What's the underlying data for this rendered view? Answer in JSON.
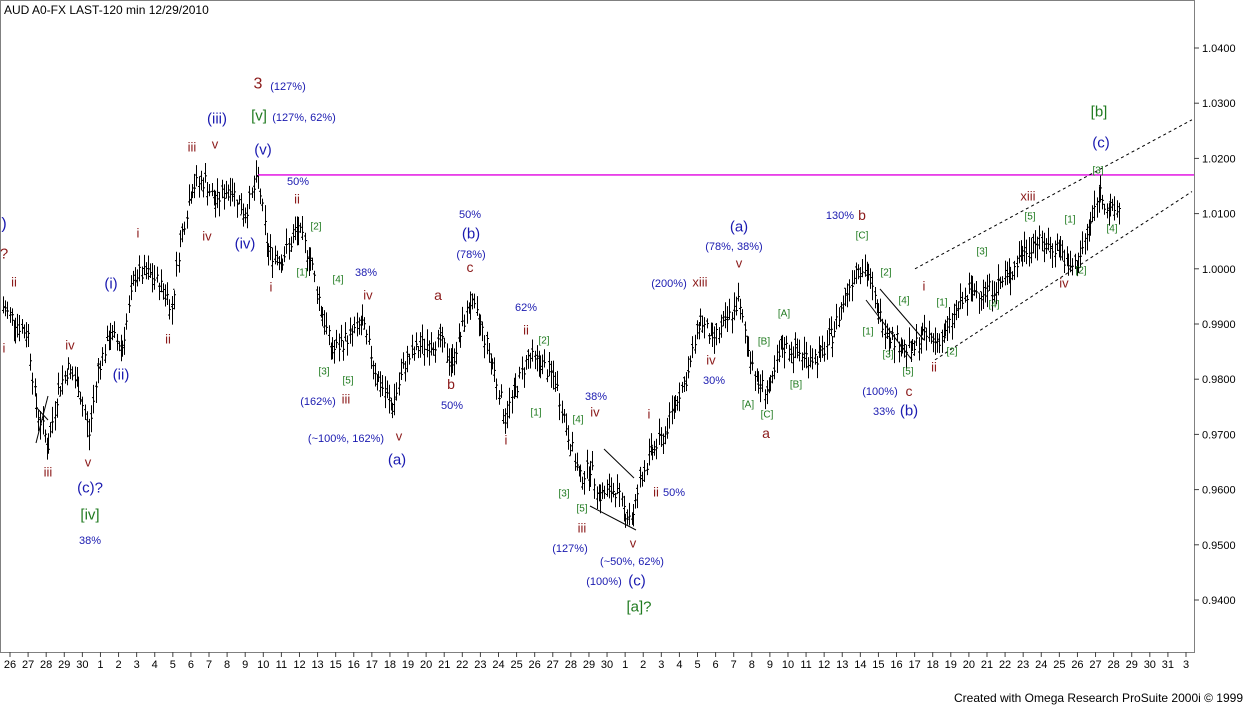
{
  "header": {
    "title": "AUD A0-FX LAST-120 min   12/29/2010"
  },
  "footer": {
    "credit": "Created with Omega Research ProSuite 2000i © 1999"
  },
  "colors": {
    "blue": "#1a1ab0",
    "red": "#8b1a1a",
    "green": "#1f7a1f",
    "pink": "#e000e0",
    "axis": "#404040",
    "bar": "#000000"
  },
  "chart_data": {
    "type": "ohlc",
    "ylim": [
      0.93,
      1.049
    ],
    "y_ticks": [
      0.94,
      0.95,
      0.96,
      0.97,
      0.98,
      0.99,
      1.0,
      1.01,
      1.02,
      1.03,
      1.04
    ],
    "y_tick_labels": [
      "0.9400",
      "0.9500",
      "0.9600",
      "0.9700",
      "0.9800",
      "0.9900",
      "1.0000",
      "1.0100",
      "1.0200",
      "1.0300",
      "1.0400"
    ],
    "x_labels": [
      "26",
      "27",
      "28",
      "29",
      "30",
      "1",
      "2",
      "3",
      "4",
      "5",
      "6",
      "7",
      "8",
      "9",
      "10",
      "11",
      "12",
      "13",
      "15",
      "16",
      "17",
      "18",
      "19",
      "20",
      "21",
      "22",
      "23",
      "24",
      "25",
      "26",
      "27",
      "28",
      "29",
      "30",
      "1",
      "2",
      "3",
      "4",
      "5",
      "6",
      "7",
      "8",
      "9",
      "10",
      "11",
      "12",
      "13",
      "14",
      "15",
      "16",
      "17",
      "18",
      "19",
      "20",
      "21",
      "22",
      "23",
      "24",
      "25",
      "26",
      "27",
      "28",
      "29",
      "30",
      "31",
      "3"
    ],
    "horizontal_line": 1.017,
    "trend_lines": [
      {
        "from": [
          915,
          1.0
        ],
        "to": [
          1192,
          1.027
        ]
      },
      {
        "from": [
          935,
          0.9835
        ],
        "to": [
          1192,
          1.014
        ]
      }
    ],
    "price_path": [
      [
        3,
        0.993
      ],
      [
        15,
        0.9905
      ],
      [
        28,
        0.988
      ],
      [
        36,
        0.975
      ],
      [
        48,
        0.968
      ],
      [
        58,
        0.978
      ],
      [
        68,
        0.982
      ],
      [
        78,
        0.979
      ],
      [
        89,
        0.97
      ],
      [
        98,
        0.982
      ],
      [
        110,
        0.988
      ],
      [
        122,
        0.986
      ],
      [
        135,
        0.999
      ],
      [
        150,
        0.999
      ],
      [
        165,
        0.996
      ],
      [
        172,
        0.993
      ],
      [
        180,
        1.005
      ],
      [
        192,
        1.015
      ],
      [
        205,
        1.016
      ],
      [
        215,
        1.012
      ],
      [
        230,
        1.015
      ],
      [
        245,
        1.01
      ],
      [
        258,
        1.0165
      ],
      [
        268,
        1.003
      ],
      [
        282,
        1.002
      ],
      [
        298,
        1.007
      ],
      [
        310,
        1.002
      ],
      [
        322,
        0.992
      ],
      [
        332,
        0.985
      ],
      [
        350,
        0.988
      ],
      [
        362,
        0.99
      ],
      [
        378,
        0.98
      ],
      [
        392,
        0.975
      ],
      [
        405,
        0.983
      ],
      [
        420,
        0.986
      ],
      [
        440,
        0.987
      ],
      [
        452,
        0.983
      ],
      [
        460,
        0.988
      ],
      [
        470,
        0.994
      ],
      [
        480,
        0.99
      ],
      [
        492,
        0.983
      ],
      [
        505,
        0.973
      ],
      [
        515,
        0.978
      ],
      [
        528,
        0.984
      ],
      [
        540,
        0.983
      ],
      [
        555,
        0.98
      ],
      [
        568,
        0.97
      ],
      [
        580,
        0.962
      ],
      [
        590,
        0.964
      ],
      [
        600,
        0.959
      ],
      [
        615,
        0.96
      ],
      [
        625,
        0.956
      ],
      [
        633,
        0.955
      ],
      [
        640,
        0.962
      ],
      [
        652,
        0.967
      ],
      [
        665,
        0.97
      ],
      [
        675,
        0.976
      ],
      [
        688,
        0.981
      ],
      [
        700,
        0.991
      ],
      [
        712,
        0.987
      ],
      [
        725,
        0.99
      ],
      [
        738,
        0.994
      ],
      [
        748,
        0.986
      ],
      [
        758,
        0.979
      ],
      [
        770,
        0.978
      ],
      [
        782,
        0.986
      ],
      [
        795,
        0.985
      ],
      [
        808,
        0.984
      ],
      [
        820,
        0.984
      ],
      [
        832,
        0.988
      ],
      [
        845,
        0.995
      ],
      [
        858,
        1.001
      ],
      [
        868,
        0.999
      ],
      [
        878,
        0.992
      ],
      [
        890,
        0.988
      ],
      [
        902,
        0.986
      ],
      [
        912,
        0.985
      ],
      [
        922,
        0.988
      ],
      [
        935,
        0.987
      ],
      [
        945,
        0.988
      ],
      [
        958,
        0.993
      ],
      [
        972,
        0.996
      ],
      [
        985,
        0.996
      ],
      [
        998,
        0.997
      ],
      [
        1010,
        0.999
      ],
      [
        1022,
        1.003
      ],
      [
        1035,
        1.005
      ],
      [
        1048,
        1.004
      ],
      [
        1060,
        1.004
      ],
      [
        1068,
        1.0
      ],
      [
        1078,
        1.001
      ],
      [
        1090,
        1.008
      ],
      [
        1100,
        1.014
      ],
      [
        1110,
        1.01
      ],
      [
        1120,
        1.011
      ]
    ],
    "annotations": [
      {
        "text": ")",
        "x": 4,
        "y": 223,
        "c": "blue",
        "s": 16
      },
      {
        "text": "?",
        "x": 4,
        "y": 253,
        "c": "red",
        "s": 15
      },
      {
        "text": "ii",
        "x": 14,
        "y": 282,
        "c": "red",
        "s": 13
      },
      {
        "text": "i",
        "x": 4,
        "y": 348,
        "c": "red",
        "s": 13
      },
      {
        "text": "iv",
        "x": 70,
        "y": 345,
        "c": "red",
        "s": 13
      },
      {
        "text": "iii",
        "x": 48,
        "y": 472,
        "c": "red",
        "s": 13
      },
      {
        "text": "v",
        "x": 88,
        "y": 462,
        "c": "red",
        "s": 13
      },
      {
        "text": "(c)?",
        "x": 90,
        "y": 487,
        "c": "blue",
        "s": 15
      },
      {
        "text": "[iv]",
        "x": 90,
        "y": 514,
        "c": "green",
        "s": 15
      },
      {
        "text": "38%",
        "x": 90,
        "y": 540,
        "c": "blue",
        "s": 11
      },
      {
        "text": "(i)",
        "x": 111,
        "y": 283,
        "c": "blue",
        "s": 15
      },
      {
        "text": "(ii)",
        "x": 121,
        "y": 374,
        "c": "blue",
        "s": 15
      },
      {
        "text": "i",
        "x": 138,
        "y": 233,
        "c": "red",
        "s": 13
      },
      {
        "text": "ii",
        "x": 168,
        "y": 339,
        "c": "red",
        "s": 13
      },
      {
        "text": "iii",
        "x": 192,
        "y": 147,
        "c": "red",
        "s": 13
      },
      {
        "text": "iv",
        "x": 207,
        "y": 236,
        "c": "red",
        "s": 13
      },
      {
        "text": "v",
        "x": 215,
        "y": 144,
        "c": "red",
        "s": 13
      },
      {
        "text": "(iii)",
        "x": 217,
        "y": 118,
        "c": "blue",
        "s": 15
      },
      {
        "text": "(iv)",
        "x": 245,
        "y": 243,
        "c": "blue",
        "s": 15
      },
      {
        "text": "(v)",
        "x": 263,
        "y": 149,
        "c": "blue",
        "s": 15
      },
      {
        "text": "3",
        "x": 258,
        "y": 83,
        "c": "red",
        "s": 16
      },
      {
        "text": "(127%)",
        "x": 288,
        "y": 86,
        "c": "blue",
        "s": 11
      },
      {
        "text": "[v]",
        "x": 259,
        "y": 115,
        "c": "green",
        "s": 15
      },
      {
        "text": "(127%, 62%)",
        "x": 304,
        "y": 117,
        "c": "blue",
        "s": 11
      },
      {
        "text": "50%",
        "x": 298,
        "y": 181,
        "c": "blue",
        "s": 11
      },
      {
        "text": "ii",
        "x": 297,
        "y": 199,
        "c": "red",
        "s": 13
      },
      {
        "text": "[2]",
        "x": 316,
        "y": 226,
        "c": "green",
        "s": 10
      },
      {
        "text": "i",
        "x": 271,
        "y": 287,
        "c": "red",
        "s": 13
      },
      {
        "text": "[1]",
        "x": 302,
        "y": 272,
        "c": "green",
        "s": 10
      },
      {
        "text": "[4]",
        "x": 338,
        "y": 279,
        "c": "green",
        "s": 10
      },
      {
        "text": "38%",
        "x": 366,
        "y": 272,
        "c": "blue",
        "s": 11
      },
      {
        "text": "iv",
        "x": 368,
        "y": 295,
        "c": "red",
        "s": 13
      },
      {
        "text": "[3]",
        "x": 324,
        "y": 371,
        "c": "green",
        "s": 10
      },
      {
        "text": "[5]",
        "x": 348,
        "y": 380,
        "c": "green",
        "s": 10
      },
      {
        "text": "(162%)",
        "x": 318,
        "y": 401,
        "c": "blue",
        "s": 11
      },
      {
        "text": "iii",
        "x": 346,
        "y": 399,
        "c": "red",
        "s": 13
      },
      {
        "text": "(~100%, 162%)",
        "x": 346,
        "y": 438,
        "c": "blue",
        "s": 11
      },
      {
        "text": "v",
        "x": 399,
        "y": 436,
        "c": "red",
        "s": 13
      },
      {
        "text": "(a)",
        "x": 397,
        "y": 459,
        "c": "blue",
        "s": 15
      },
      {
        "text": "a",
        "x": 438,
        "y": 295,
        "c": "red",
        "s": 14
      },
      {
        "text": "b",
        "x": 451,
        "y": 384,
        "c": "red",
        "s": 14
      },
      {
        "text": "50%",
        "x": 452,
        "y": 405,
        "c": "blue",
        "s": 11
      },
      {
        "text": "50%",
        "x": 470,
        "y": 214,
        "c": "blue",
        "s": 11
      },
      {
        "text": "(b)",
        "x": 471,
        "y": 233,
        "c": "blue",
        "s": 15
      },
      {
        "text": "(78%)",
        "x": 471,
        "y": 254,
        "c": "blue",
        "s": 11
      },
      {
        "text": "c",
        "x": 470,
        "y": 267,
        "c": "red",
        "s": 14
      },
      {
        "text": "62%",
        "x": 526,
        "y": 307,
        "c": "blue",
        "s": 11
      },
      {
        "text": "ii",
        "x": 526,
        "y": 330,
        "c": "red",
        "s": 13
      },
      {
        "text": "[2]",
        "x": 544,
        "y": 340,
        "c": "green",
        "s": 10
      },
      {
        "text": "[1]",
        "x": 536,
        "y": 412,
        "c": "green",
        "s": 10
      },
      {
        "text": "i",
        "x": 506,
        "y": 440,
        "c": "red",
        "s": 13
      },
      {
        "text": "38%",
        "x": 596,
        "y": 396,
        "c": "blue",
        "s": 11
      },
      {
        "text": "iv",
        "x": 595,
        "y": 412,
        "c": "red",
        "s": 13
      },
      {
        "text": "[4]",
        "x": 578,
        "y": 419,
        "c": "green",
        "s": 10
      },
      {
        "text": "[3]",
        "x": 564,
        "y": 493,
        "c": "green",
        "s": 10
      },
      {
        "text": "[5]",
        "x": 582,
        "y": 508,
        "c": "green",
        "s": 10
      },
      {
        "text": "iii",
        "x": 582,
        "y": 528,
        "c": "red",
        "s": 13
      },
      {
        "text": "(127%)",
        "x": 570,
        "y": 548,
        "c": "blue",
        "s": 11
      },
      {
        "text": "v",
        "x": 633,
        "y": 543,
        "c": "red",
        "s": 13
      },
      {
        "text": "(~50%, 62%)",
        "x": 632,
        "y": 561,
        "c": "blue",
        "s": 11
      },
      {
        "text": "(100%)",
        "x": 604,
        "y": 581,
        "c": "blue",
        "s": 11
      },
      {
        "text": "(c)",
        "x": 637,
        "y": 580,
        "c": "blue",
        "s": 15
      },
      {
        "text": "[a]?",
        "x": 639,
        "y": 606,
        "c": "green",
        "s": 15
      },
      {
        "text": "i",
        "x": 649,
        "y": 414,
        "c": "red",
        "s": 13
      },
      {
        "text": "ii",
        "x": 656,
        "y": 492,
        "c": "red",
        "s": 13
      },
      {
        "text": "50%",
        "x": 674,
        "y": 492,
        "c": "blue",
        "s": 11
      },
      {
        "text": "(200%)",
        "x": 669,
        "y": 283,
        "c": "blue",
        "s": 11
      },
      {
        "text": "xiii",
        "x": 700,
        "y": 282,
        "c": "red",
        "s": 13
      },
      {
        "text": "(a)",
        "x": 739,
        "y": 226,
        "c": "blue",
        "s": 15
      },
      {
        "text": "(78%, 38%)",
        "x": 734,
        "y": 246,
        "c": "blue",
        "s": 11
      },
      {
        "text": "v",
        "x": 739,
        "y": 263,
        "c": "red",
        "s": 13
      },
      {
        "text": "iv",
        "x": 711,
        "y": 360,
        "c": "red",
        "s": 13
      },
      {
        "text": "30%",
        "x": 714,
        "y": 380,
        "c": "blue",
        "s": 11
      },
      {
        "text": "[A]",
        "x": 784,
        "y": 313,
        "c": "green",
        "s": 10
      },
      {
        "text": "[B]",
        "x": 764,
        "y": 341,
        "c": "green",
        "s": 10
      },
      {
        "text": "[B]",
        "x": 796,
        "y": 384,
        "c": "green",
        "s": 10
      },
      {
        "text": "[A]",
        "x": 748,
        "y": 404,
        "c": "green",
        "s": 10
      },
      {
        "text": "[C]",
        "x": 767,
        "y": 414,
        "c": "green",
        "s": 10
      },
      {
        "text": "a",
        "x": 766,
        "y": 433,
        "c": "red",
        "s": 14
      },
      {
        "text": "130%",
        "x": 840,
        "y": 215,
        "c": "blue",
        "s": 11
      },
      {
        "text": "b",
        "x": 862,
        "y": 215,
        "c": "red",
        "s": 14
      },
      {
        "text": "[C]",
        "x": 862,
        "y": 235,
        "c": "green",
        "s": 10
      },
      {
        "text": "[2]",
        "x": 886,
        "y": 272,
        "c": "green",
        "s": 10
      },
      {
        "text": "[4]",
        "x": 904,
        "y": 300,
        "c": "green",
        "s": 10
      },
      {
        "text": "[1]",
        "x": 868,
        "y": 331,
        "c": "green",
        "s": 10
      },
      {
        "text": "[3]",
        "x": 888,
        "y": 354,
        "c": "green",
        "s": 10
      },
      {
        "text": "[5]",
        "x": 908,
        "y": 371,
        "c": "green",
        "s": 10
      },
      {
        "text": "(100%)",
        "x": 880,
        "y": 391,
        "c": "blue",
        "s": 11
      },
      {
        "text": "c",
        "x": 909,
        "y": 391,
        "c": "red",
        "s": 14
      },
      {
        "text": "33%",
        "x": 884,
        "y": 411,
        "c": "blue",
        "s": 11
      },
      {
        "text": "(b)",
        "x": 909,
        "y": 410,
        "c": "blue",
        "s": 15
      },
      {
        "text": "i",
        "x": 924,
        "y": 286,
        "c": "red",
        "s": 13
      },
      {
        "text": "[1]",
        "x": 942,
        "y": 302,
        "c": "green",
        "s": 10
      },
      {
        "text": "[2]",
        "x": 952,
        "y": 351,
        "c": "green",
        "s": 10
      },
      {
        "text": "ii",
        "x": 934,
        "y": 367,
        "c": "red",
        "s": 13
      },
      {
        "text": "[3]",
        "x": 982,
        "y": 251,
        "c": "green",
        "s": 10
      },
      {
        "text": "[4]",
        "x": 994,
        "y": 304,
        "c": "green",
        "s": 10
      },
      {
        "text": "xiii",
        "x": 1028,
        "y": 196,
        "c": "red",
        "s": 13
      },
      {
        "text": "[5]",
        "x": 1030,
        "y": 216,
        "c": "green",
        "s": 10
      },
      {
        "text": "[1]",
        "x": 1070,
        "y": 219,
        "c": "green",
        "s": 10
      },
      {
        "text": "iv",
        "x": 1064,
        "y": 283,
        "c": "red",
        "s": 13
      },
      {
        "text": "[2]",
        "x": 1081,
        "y": 270,
        "c": "green",
        "s": 10
      },
      {
        "text": "[b]",
        "x": 1099,
        "y": 111,
        "c": "green",
        "s": 15
      },
      {
        "text": "(c)",
        "x": 1101,
        "y": 142,
        "c": "blue",
        "s": 15
      },
      {
        "text": "[3]",
        "x": 1098,
        "y": 170,
        "c": "green",
        "s": 10
      },
      {
        "text": "[4]",
        "x": 1112,
        "y": 228,
        "c": "green",
        "s": 10
      }
    ],
    "lines_c": [
      [
        36,
        407,
        48,
        420
      ],
      [
        36,
        443,
        48,
        396
      ],
      [
        604,
        449,
        634,
        478
      ],
      [
        590,
        506,
        636,
        530
      ],
      [
        866,
        300,
        912,
        360
      ],
      [
        880,
        289,
        924,
        340
      ]
    ]
  }
}
